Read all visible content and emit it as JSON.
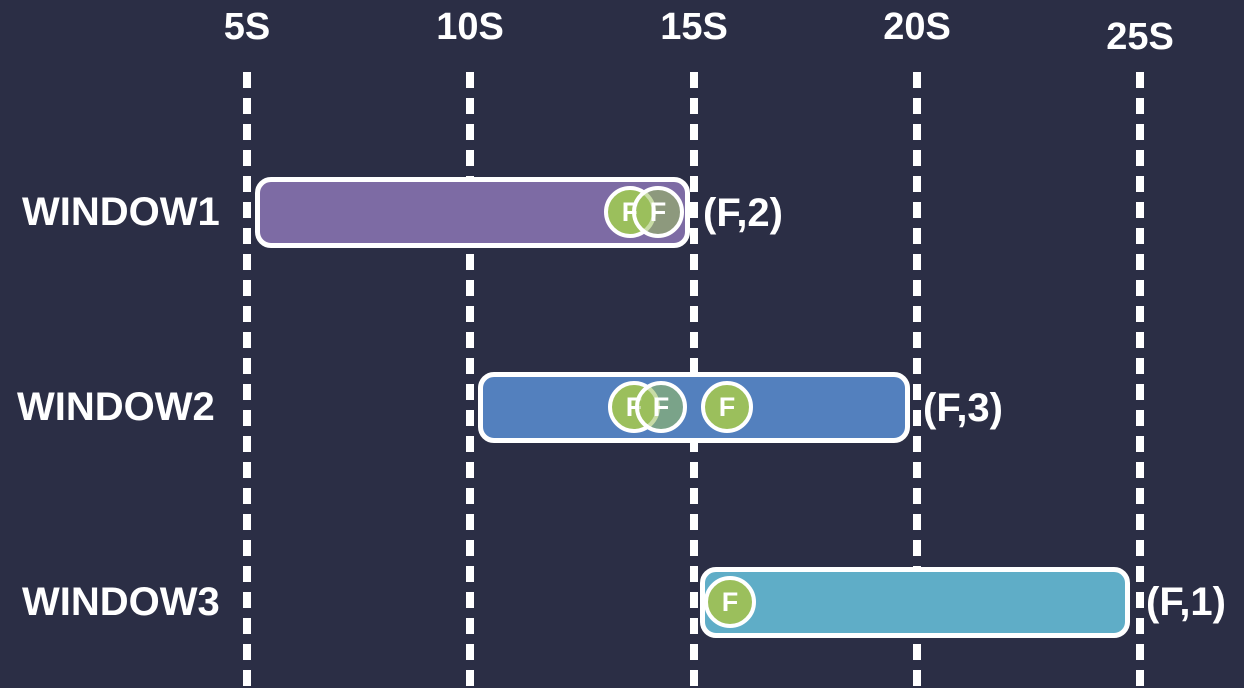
{
  "colors": {
    "background": "#2b2e45",
    "gridline": "#ffffff",
    "text": "#ffffff",
    "event_fill": "#9bbf5c",
    "event_border": "#ffffff",
    "window1_bar": "#7d6ba4",
    "window2_bar": "#5380be",
    "window3_bar": "#5fadc7"
  },
  "axis": {
    "unit": "seconds",
    "tick_labels": [
      "5S",
      "10S",
      "15S",
      "20S",
      "25S"
    ]
  },
  "windows": [
    {
      "label": "WINDOW1",
      "range": {
        "start": "5S",
        "end": "15S"
      },
      "count_label": "(F,2)",
      "bar_color": "#7d6ba4",
      "events": [
        {
          "label": "F",
          "time": "~13.5S",
          "style": "solid"
        },
        {
          "label": "F",
          "time": "~14.1S",
          "style": "translucent"
        }
      ]
    },
    {
      "label": "WINDOW2",
      "range": {
        "start": "10S",
        "end": "20S"
      },
      "count_label": "(F,3)",
      "bar_color": "#5380be",
      "events": [
        {
          "label": "F",
          "time": "~13.5S",
          "style": "solid"
        },
        {
          "label": "F",
          "time": "~14.1S",
          "style": "translucent"
        },
        {
          "label": "F",
          "time": "~15.7S",
          "style": "solid"
        }
      ]
    },
    {
      "label": "WINDOW3",
      "range": {
        "start": "15S",
        "end": "25S"
      },
      "count_label": "(F,1)",
      "bar_color": "#5fadc7",
      "events": [
        {
          "label": "F",
          "time": "~15.7S",
          "style": "solid"
        }
      ]
    }
  ]
}
